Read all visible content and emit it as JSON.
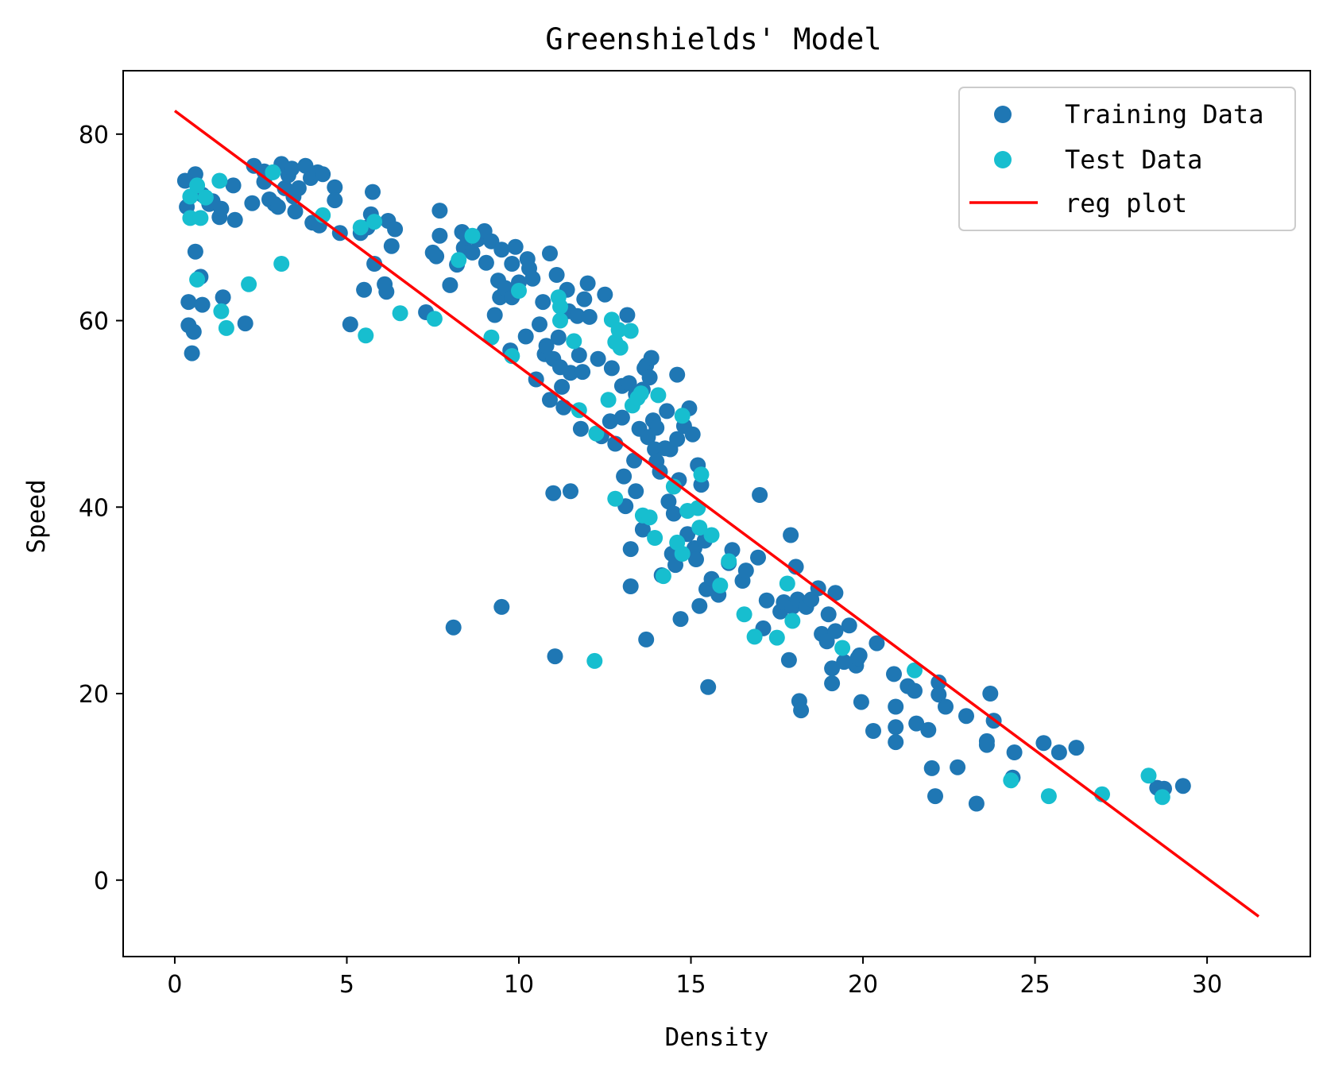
{
  "chart_data": {
    "type": "scatter",
    "title": "Greenshields' Model",
    "xlabel": "Density",
    "ylabel": "Speed",
    "xlim": [
      -1.5,
      33
    ],
    "ylim": [
      -8.2,
      86.8
    ],
    "x_ticks": [
      0,
      5,
      10,
      15,
      20,
      25,
      30
    ],
    "y_ticks": [
      0,
      20,
      40,
      60,
      80
    ],
    "x_tick_labels": [
      "0",
      "5",
      "10",
      "15",
      "20",
      "25",
      "30"
    ],
    "y_tick_labels": [
      "0",
      "20",
      "40",
      "60",
      "80"
    ],
    "grid": false,
    "legend_position": "top-right",
    "colors": {
      "training": "#1f77b4",
      "test": "#17becf",
      "reg": "#ff0000"
    },
    "series": [
      {
        "name": "Training Data",
        "kind": "scatter",
        "color": "#1f77b4",
        "points": [
          [
            0.3,
            75.0
          ],
          [
            0.35,
            72.2
          ],
          [
            0.4,
            59.5
          ],
          [
            0.4,
            62.0
          ],
          [
            0.5,
            56.5
          ],
          [
            0.55,
            58.8
          ],
          [
            0.6,
            75.7
          ],
          [
            0.6,
            67.4
          ],
          [
            0.75,
            64.7
          ],
          [
            0.8,
            61.7
          ],
          [
            0.8,
            73.5
          ],
          [
            1.0,
            72.5
          ],
          [
            1.1,
            72.8
          ],
          [
            1.3,
            71.1
          ],
          [
            1.35,
            72.0
          ],
          [
            1.4,
            62.5
          ],
          [
            1.7,
            74.5
          ],
          [
            1.75,
            70.8
          ],
          [
            2.05,
            59.7
          ],
          [
            2.25,
            72.6
          ],
          [
            2.3,
            76.6
          ],
          [
            2.6,
            76.0
          ],
          [
            2.6,
            74.9
          ],
          [
            2.75,
            73.0
          ],
          [
            2.9,
            72.5
          ],
          [
            3.0,
            72.2
          ],
          [
            3.1,
            76.8
          ],
          [
            3.2,
            74.2
          ],
          [
            3.3,
            75.6
          ],
          [
            3.4,
            76.3
          ],
          [
            3.45,
            73.3
          ],
          [
            3.5,
            71.7
          ],
          [
            3.6,
            74.2
          ],
          [
            3.8,
            76.6
          ],
          [
            3.95,
            75.3
          ],
          [
            4.0,
            70.5
          ],
          [
            4.15,
            75.9
          ],
          [
            4.2,
            70.2
          ],
          [
            4.3,
            75.7
          ],
          [
            4.65,
            74.3
          ],
          [
            4.65,
            72.9
          ],
          [
            4.8,
            69.4
          ],
          [
            5.1,
            59.6
          ],
          [
            5.4,
            69.4
          ],
          [
            5.5,
            63.3
          ],
          [
            5.6,
            70.0
          ],
          [
            5.7,
            71.4
          ],
          [
            5.75,
            73.8
          ],
          [
            5.8,
            66.1
          ],
          [
            6.1,
            63.9
          ],
          [
            6.15,
            63.1
          ],
          [
            6.2,
            70.7
          ],
          [
            6.3,
            68.0
          ],
          [
            6.4,
            69.8
          ],
          [
            7.3,
            60.9
          ],
          [
            7.5,
            67.3
          ],
          [
            7.6,
            66.9
          ],
          [
            7.7,
            71.8
          ],
          [
            7.7,
            69.1
          ],
          [
            8.0,
            63.8
          ],
          [
            8.1,
            27.1
          ],
          [
            8.2,
            66.0
          ],
          [
            8.35,
            69.5
          ],
          [
            8.4,
            67.8
          ],
          [
            8.5,
            68.9
          ],
          [
            8.65,
            67.3
          ],
          [
            8.8,
            68.7
          ],
          [
            9.0,
            69.6
          ],
          [
            9.05,
            66.2
          ],
          [
            9.2,
            68.5
          ],
          [
            9.3,
            60.6
          ],
          [
            9.4,
            64.3
          ],
          [
            9.45,
            62.5
          ],
          [
            9.5,
            67.6
          ],
          [
            9.5,
            29.3
          ],
          [
            9.6,
            63.5
          ],
          [
            9.75,
            56.8
          ],
          [
            9.8,
            66.1
          ],
          [
            9.8,
            62.5
          ],
          [
            9.9,
            67.9
          ],
          [
            10.0,
            64.1
          ],
          [
            10.2,
            58.3
          ],
          [
            10.25,
            66.6
          ],
          [
            10.3,
            65.6
          ],
          [
            10.4,
            64.5
          ],
          [
            10.5,
            53.7
          ],
          [
            10.6,
            59.6
          ],
          [
            10.7,
            62.0
          ],
          [
            10.75,
            56.4
          ],
          [
            10.8,
            57.3
          ],
          [
            10.9,
            67.2
          ],
          [
            10.9,
            51.5
          ],
          [
            11.0,
            55.9
          ],
          [
            11.0,
            41.5
          ],
          [
            11.05,
            24.0
          ],
          [
            11.1,
            64.9
          ],
          [
            11.15,
            58.2
          ],
          [
            11.2,
            55.0
          ],
          [
            11.25,
            52.9
          ],
          [
            11.3,
            50.7
          ],
          [
            11.4,
            63.3
          ],
          [
            11.45,
            61.0
          ],
          [
            11.5,
            54.4
          ],
          [
            11.5,
            41.7
          ],
          [
            11.7,
            60.5
          ],
          [
            11.75,
            56.3
          ],
          [
            11.8,
            48.4
          ],
          [
            11.85,
            54.5
          ],
          [
            11.9,
            62.3
          ],
          [
            12.0,
            64.0
          ],
          [
            12.05,
            60.4
          ],
          [
            12.3,
            55.9
          ],
          [
            12.4,
            47.6
          ],
          [
            12.5,
            62.8
          ],
          [
            12.65,
            49.2
          ],
          [
            12.7,
            54.9
          ],
          [
            12.8,
            46.8
          ],
          [
            13.0,
            53.0
          ],
          [
            13.0,
            49.6
          ],
          [
            13.05,
            43.3
          ],
          [
            13.1,
            40.1
          ],
          [
            13.15,
            60.6
          ],
          [
            13.2,
            53.3
          ],
          [
            13.25,
            35.5
          ],
          [
            13.25,
            31.5
          ],
          [
            13.35,
            45.0
          ],
          [
            13.4,
            52.1
          ],
          [
            13.4,
            41.7
          ],
          [
            13.5,
            48.4
          ],
          [
            13.6,
            52.6
          ],
          [
            13.6,
            37.6
          ],
          [
            13.65,
            54.9
          ],
          [
            13.7,
            55.2
          ],
          [
            13.7,
            25.8
          ],
          [
            13.75,
            47.5
          ],
          [
            13.8,
            53.9
          ],
          [
            13.85,
            56.0
          ],
          [
            13.9,
            49.3
          ],
          [
            13.95,
            46.2
          ],
          [
            14.0,
            48.5
          ],
          [
            14.0,
            44.9
          ],
          [
            14.1,
            43.8
          ],
          [
            14.15,
            32.7
          ],
          [
            14.25,
            46.3
          ],
          [
            14.3,
            50.3
          ],
          [
            14.35,
            40.6
          ],
          [
            14.4,
            46.2
          ],
          [
            14.45,
            35.0
          ],
          [
            14.5,
            39.3
          ],
          [
            14.55,
            33.8
          ],
          [
            14.6,
            54.2
          ],
          [
            14.6,
            47.3
          ],
          [
            14.65,
            42.9
          ],
          [
            14.7,
            28.0
          ],
          [
            14.8,
            48.7
          ],
          [
            14.9,
            37.1
          ],
          [
            14.95,
            50.6
          ],
          [
            15.05,
            47.8
          ],
          [
            15.1,
            35.6
          ],
          [
            15.15,
            34.4
          ],
          [
            15.2,
            44.5
          ],
          [
            15.25,
            29.4
          ],
          [
            15.3,
            42.4
          ],
          [
            15.4,
            36.4
          ],
          [
            15.45,
            31.2
          ],
          [
            15.5,
            20.7
          ],
          [
            15.6,
            32.3
          ],
          [
            15.8,
            30.6
          ],
          [
            16.1,
            34.0
          ],
          [
            16.2,
            35.4
          ],
          [
            16.5,
            32.1
          ],
          [
            16.6,
            33.2
          ],
          [
            16.95,
            34.6
          ],
          [
            17.0,
            41.3
          ],
          [
            17.1,
            27.0
          ],
          [
            17.2,
            30.0
          ],
          [
            17.6,
            28.8
          ],
          [
            17.7,
            29.8
          ],
          [
            17.85,
            23.6
          ],
          [
            17.9,
            37.0
          ],
          [
            17.95,
            29.3
          ],
          [
            18.05,
            33.6
          ],
          [
            18.1,
            30.1
          ],
          [
            18.15,
            19.2
          ],
          [
            18.2,
            18.2
          ],
          [
            18.35,
            29.3
          ],
          [
            18.5,
            30.1
          ],
          [
            18.7,
            31.3
          ],
          [
            18.8,
            26.4
          ],
          [
            18.95,
            25.6
          ],
          [
            19.0,
            28.5
          ],
          [
            19.1,
            22.7
          ],
          [
            19.1,
            21.1
          ],
          [
            19.2,
            30.8
          ],
          [
            19.2,
            26.7
          ],
          [
            19.45,
            23.4
          ],
          [
            19.6,
            27.3
          ],
          [
            19.8,
            23.0
          ],
          [
            19.85,
            23.8
          ],
          [
            19.9,
            24.1
          ],
          [
            19.95,
            19.1
          ],
          [
            20.3,
            16.0
          ],
          [
            20.4,
            25.4
          ],
          [
            20.9,
            22.1
          ],
          [
            20.95,
            18.6
          ],
          [
            20.95,
            16.4
          ],
          [
            20.95,
            14.8
          ],
          [
            21.3,
            20.8
          ],
          [
            21.5,
            20.3
          ],
          [
            21.55,
            16.8
          ],
          [
            21.9,
            16.1
          ],
          [
            22.0,
            12.0
          ],
          [
            22.1,
            9.0
          ],
          [
            22.2,
            21.2
          ],
          [
            22.2,
            19.9
          ],
          [
            22.4,
            18.6
          ],
          [
            22.75,
            12.1
          ],
          [
            23.0,
            17.6
          ],
          [
            23.3,
            8.2
          ],
          [
            23.6,
            14.9
          ],
          [
            23.6,
            14.5
          ],
          [
            23.7,
            20.0
          ],
          [
            23.8,
            17.1
          ],
          [
            24.35,
            11.0
          ],
          [
            24.4,
            13.7
          ],
          [
            25.25,
            14.7
          ],
          [
            25.7,
            13.7
          ],
          [
            26.2,
            14.2
          ],
          [
            28.55,
            9.9
          ],
          [
            28.75,
            9.8
          ],
          [
            29.3,
            10.1
          ]
        ]
      },
      {
        "name": "Test Data",
        "kind": "scatter",
        "color": "#17becf",
        "points": [
          [
            0.45,
            73.3
          ],
          [
            0.45,
            71.0
          ],
          [
            0.65,
            64.4
          ],
          [
            0.65,
            74.5
          ],
          [
            0.75,
            71.0
          ],
          [
            0.9,
            73.2
          ],
          [
            1.3,
            75.0
          ],
          [
            1.35,
            61.0
          ],
          [
            1.5,
            59.2
          ],
          [
            2.15,
            63.9
          ],
          [
            2.85,
            75.9
          ],
          [
            3.1,
            66.1
          ],
          [
            4.3,
            71.3
          ],
          [
            5.4,
            70.0
          ],
          [
            5.55,
            58.4
          ],
          [
            5.8,
            70.6
          ],
          [
            6.55,
            60.8
          ],
          [
            7.55,
            60.2
          ],
          [
            8.25,
            66.5
          ],
          [
            8.65,
            69.1
          ],
          [
            9.2,
            58.2
          ],
          [
            9.8,
            56.2
          ],
          [
            10.0,
            63.2
          ],
          [
            11.15,
            62.5
          ],
          [
            11.2,
            61.5
          ],
          [
            11.2,
            60.0
          ],
          [
            11.6,
            57.8
          ],
          [
            11.75,
            50.4
          ],
          [
            12.2,
            23.5
          ],
          [
            12.25,
            47.9
          ],
          [
            12.6,
            51.5
          ],
          [
            12.7,
            60.1
          ],
          [
            12.8,
            57.7
          ],
          [
            12.8,
            40.9
          ],
          [
            12.9,
            59.0
          ],
          [
            12.95,
            57.1
          ],
          [
            13.25,
            58.9
          ],
          [
            13.3,
            50.9
          ],
          [
            13.45,
            51.7
          ],
          [
            13.55,
            52.2
          ],
          [
            13.6,
            39.1
          ],
          [
            13.8,
            38.9
          ],
          [
            13.95,
            36.7
          ],
          [
            14.05,
            52.0
          ],
          [
            14.2,
            32.6
          ],
          [
            14.5,
            42.2
          ],
          [
            14.6,
            36.2
          ],
          [
            14.75,
            35.0
          ],
          [
            14.75,
            49.8
          ],
          [
            14.9,
            39.6
          ],
          [
            15.2,
            39.9
          ],
          [
            15.25,
            37.8
          ],
          [
            15.3,
            43.5
          ],
          [
            15.6,
            37.0
          ],
          [
            15.85,
            31.6
          ],
          [
            16.1,
            34.2
          ],
          [
            16.55,
            28.5
          ],
          [
            16.85,
            26.1
          ],
          [
            17.5,
            26.0
          ],
          [
            17.8,
            31.8
          ],
          [
            17.95,
            27.8
          ],
          [
            19.4,
            24.9
          ],
          [
            21.5,
            22.5
          ],
          [
            24.3,
            10.7
          ],
          [
            25.4,
            9.0
          ],
          [
            26.95,
            9.2
          ],
          [
            28.3,
            11.2
          ],
          [
            28.7,
            8.9
          ]
        ]
      },
      {
        "name": "reg plot",
        "kind": "line",
        "color": "#ff0000",
        "x": [
          0,
          31.5
        ],
        "y": [
          82.5,
          -3.9
        ]
      }
    ]
  }
}
